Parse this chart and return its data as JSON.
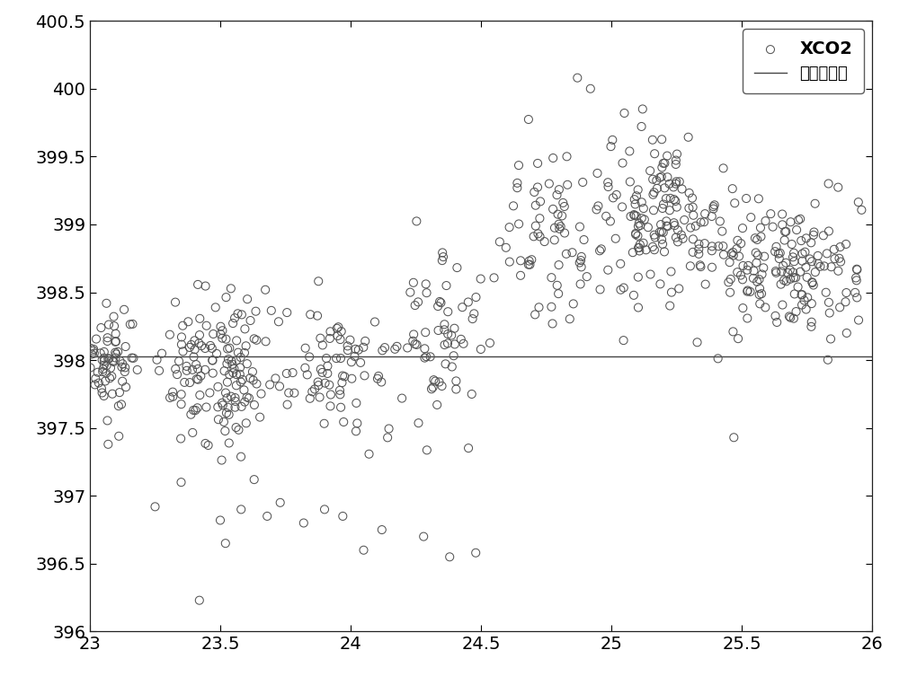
{
  "background_line_y": 398.03,
  "xlim": [
    23,
    26
  ],
  "ylim": [
    396,
    400.5
  ],
  "xticks": [
    23,
    23.5,
    24,
    24.5,
    25,
    25.5,
    26
  ],
  "yticks": [
    396,
    396.5,
    397,
    397.5,
    398,
    398.5,
    399,
    399.5,
    400,
    400.5
  ],
  "xticklabels": [
    "23",
    "23.5",
    "24",
    "24.5",
    "25",
    "25.5",
    "26"
  ],
  "yticklabels": [
    "396",
    "396.5",
    "397",
    "397.5",
    "398",
    "398.5",
    "399",
    "399.5",
    "400",
    "400.5"
  ],
  "legend_xco2": "XCO2",
  "legend_bg": "背景场浓度",
  "marker_edgecolor": "#555555",
  "marker_facecolor": "none",
  "marker_size": 6.5,
  "line_color": "#444444",
  "line_width": 1.0,
  "figure_bg": "#ffffff",
  "figsize": [
    10.0,
    7.73
  ],
  "dpi": 100,
  "tick_labelsize": 14,
  "legend_fontsize": 13
}
